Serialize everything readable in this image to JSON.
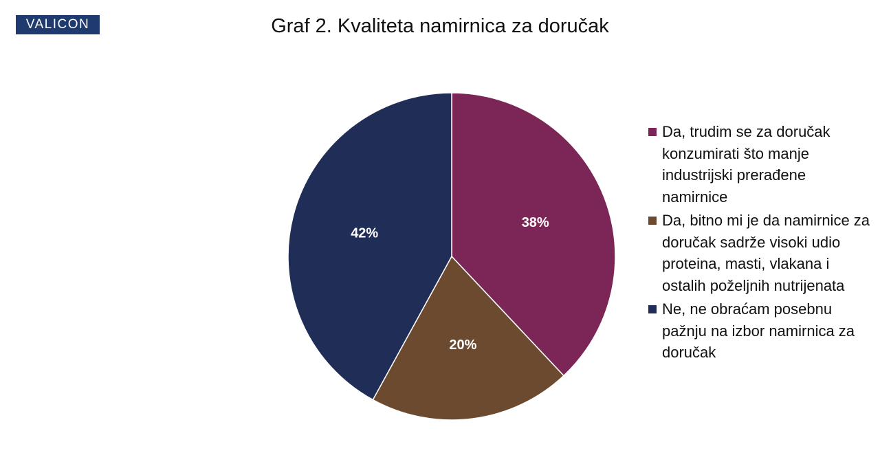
{
  "logo": "VALICON",
  "chart_data": {
    "type": "pie",
    "title": "Graf 2. Kvaliteta namirnica za doručak",
    "categories": [
      "Da, trudim se za doručak konzumirati što manje industrijski prerađene namirnice",
      "Da, bitno mi je da namirnice za doručak sadrže visoki udio proteina, masti, vlakana i ostalih poželjnih nutrijenata",
      "Ne, ne obraćam posebnu pažnju na izbor namirnica za doručak"
    ],
    "values": [
      38,
      20,
      42
    ],
    "value_labels": [
      "38%",
      "20%",
      "42%"
    ],
    "colors": [
      "#7b2657",
      "#6b4a30",
      "#1f2d57"
    ],
    "legend": "right"
  }
}
